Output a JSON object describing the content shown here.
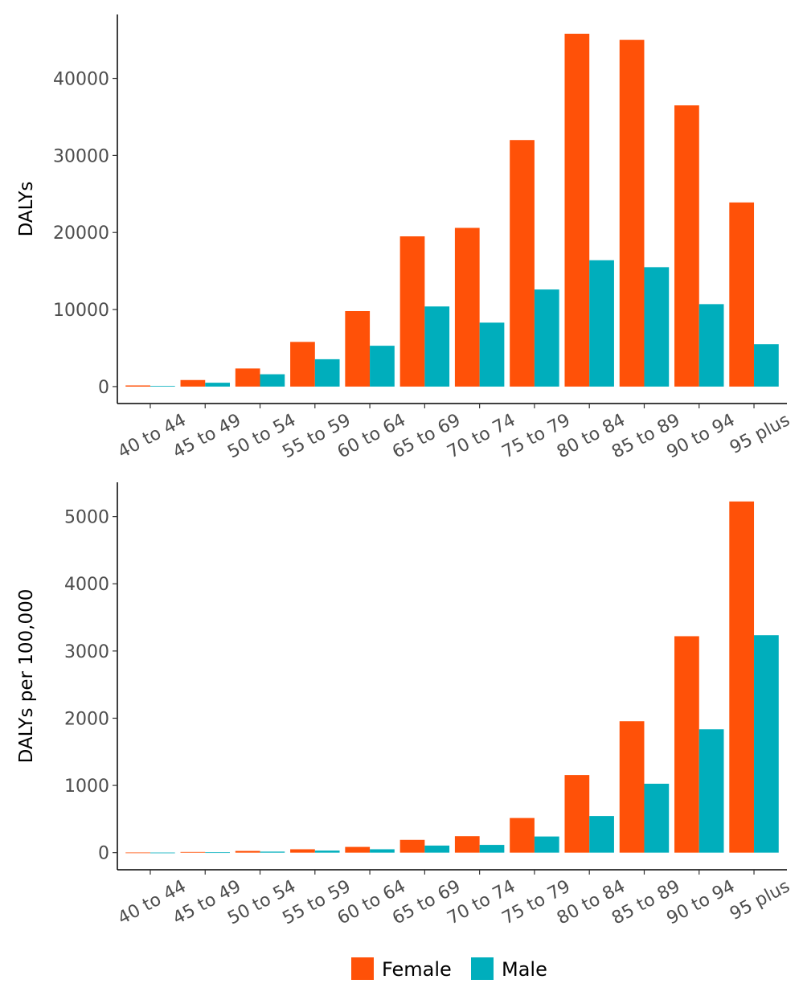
{
  "colors": {
    "female": "#FF5108",
    "male": "#00AEBC",
    "axis": "#000000",
    "tick_text": "#4d4d4d"
  },
  "legend": {
    "items": [
      {
        "label": "Female",
        "color": "#FF5108"
      },
      {
        "label": "Male",
        "color": "#00AEBC"
      }
    ],
    "position": "bottom"
  },
  "chart_data": [
    {
      "type": "bar",
      "categories": [
        "40 to 44",
        "45 to 49",
        "50 to 54",
        "55 to 59",
        "60 to 64",
        "65 to 69",
        "70 to 74",
        "75 to 79",
        "80 to 84",
        "85 to 89",
        "90 to 94",
        "95 plus"
      ],
      "series": [
        {
          "name": "Female",
          "values": [
            150,
            850,
            2350,
            5800,
            9800,
            19500,
            20600,
            32000,
            45800,
            45000,
            36500,
            23900
          ]
        },
        {
          "name": "Male",
          "values": [
            80,
            500,
            1600,
            3550,
            5300,
            10400,
            8300,
            12600,
            16400,
            15500,
            10700,
            5500
          ]
        }
      ],
      "ylabel": "DALYs",
      "xlabel": "",
      "yticks": [
        0,
        10000,
        20000,
        30000,
        40000
      ],
      "ylim": [
        -2200,
        48300
      ],
      "grid": false
    },
    {
      "type": "bar",
      "categories": [
        "40 to 44",
        "45 to 49",
        "50 to 54",
        "55 to 59",
        "60 to 64",
        "65 to 69",
        "70 to 74",
        "75 to 79",
        "80 to 84",
        "85 to 89",
        "90 to 94",
        "95 plus"
      ],
      "series": [
        {
          "name": "Female",
          "values": [
            2,
            10,
            25,
            50,
            85,
            190,
            245,
            515,
            1155,
            1955,
            3220,
            5225
          ]
        },
        {
          "name": "Male",
          "values": [
            1,
            5,
            15,
            30,
            50,
            105,
            115,
            240,
            545,
            1025,
            1835,
            3235
          ]
        }
      ],
      "ylabel": "DALYs per 100,000",
      "xlabel": "",
      "yticks": [
        0,
        1000,
        2000,
        3000,
        4000,
        5000
      ],
      "ylim": [
        -255,
        5510
      ],
      "grid": false
    }
  ]
}
